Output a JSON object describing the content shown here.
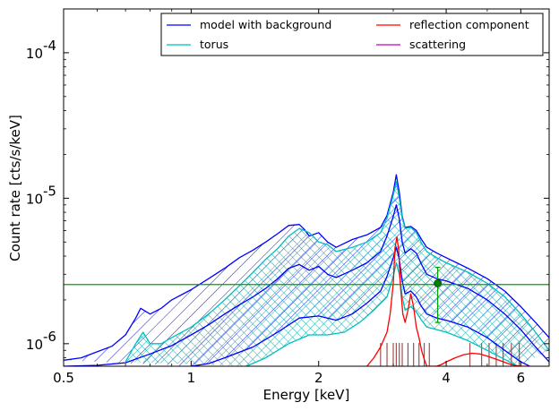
{
  "chart_data": {
    "type": "line",
    "xlabel": "Energy [keV]",
    "ylabel": "Count rate [cts/s/keV]",
    "x_scale": "log",
    "y_scale": "log",
    "xlim": [
      0.5,
      7.0
    ],
    "ylim": [
      7e-07,
      0.0002
    ],
    "x_ticks": [
      {
        "value": 0.5,
        "label": "0.5"
      },
      {
        "value": 1,
        "label": "1"
      },
      {
        "value": 2,
        "label": "2"
      },
      {
        "value": 4,
        "label": "4"
      },
      {
        "value": 6,
        "label": "6"
      }
    ],
    "y_ticks": [
      {
        "value": 1e-06,
        "label": "10",
        "exp": "-6"
      },
      {
        "value": 1e-05,
        "label": "10",
        "exp": "-5"
      },
      {
        "value": 0.0001,
        "label": "10",
        "exp": "-4"
      }
    ],
    "legend": {
      "placement": "top-right",
      "entries": [
        {
          "name": "model with background",
          "color": "#0000ff"
        },
        {
          "name": "reflection component",
          "color": "#ff0000"
        },
        {
          "name": "torus",
          "color": "#00bfbf"
        },
        {
          "name": "scattering",
          "color": "#bf00bf"
        }
      ]
    },
    "series": [
      {
        "name": "model with background",
        "color": "#0000ff",
        "role": "upper",
        "x": [
          0.5,
          0.55,
          0.6,
          0.65,
          0.7,
          0.74,
          0.76,
          0.8,
          0.85,
          0.9,
          1.0,
          1.1,
          1.2,
          1.3,
          1.4,
          1.5,
          1.6,
          1.7,
          1.8,
          1.85,
          1.9,
          2.0,
          2.1,
          2.2,
          2.4,
          2.6,
          2.8,
          2.9,
          3.0,
          3.05,
          3.1,
          3.15,
          3.2,
          3.3,
          3.4,
          3.5,
          3.6,
          3.8,
          4.0,
          4.5,
          5.0,
          5.5,
          6.0,
          6.5,
          7.0
        ],
        "y": [
          7.7e-07,
          8e-07,
          8.8e-07,
          9.6e-07,
          1.15e-06,
          1.5e-06,
          1.75e-06,
          1.6e-06,
          1.75e-06,
          2e-06,
          2.35e-06,
          2.8e-06,
          3.3e-06,
          3.9e-06,
          4.4e-06,
          5e-06,
          5.7e-06,
          6.5e-06,
          6.6e-06,
          6.1e-06,
          5.5e-06,
          5.8e-06,
          5e-06,
          4.6e-06,
          5.2e-06,
          5.6e-06,
          6.3e-06,
          7.6e-06,
          1.1e-05,
          1.45e-05,
          1.1e-05,
          7.5e-06,
          6.3e-06,
          6.4e-06,
          6e-06,
          5.2e-06,
          4.6e-06,
          4.2e-06,
          3.9e-06,
          3.3e-06,
          2.8e-06,
          2.3e-06,
          1.8e-06,
          1.4e-06,
          1.1e-06
        ]
      },
      {
        "name": "model with background",
        "color": "#0000ff",
        "role": "middle",
        "x": [
          0.5,
          0.6,
          0.7,
          0.8,
          0.9,
          1.0,
          1.1,
          1.2,
          1.3,
          1.4,
          1.5,
          1.6,
          1.7,
          1.8,
          1.9,
          2.0,
          2.1,
          2.2,
          2.4,
          2.6,
          2.8,
          2.9,
          3.0,
          3.05,
          3.1,
          3.15,
          3.2,
          3.3,
          3.4,
          3.5,
          3.6,
          3.8,
          4.0,
          4.5,
          5.0,
          5.5,
          6.0,
          6.5,
          7.0
        ],
        "y": [
          7e-07,
          7.1e-07,
          7.4e-07,
          8.5e-07,
          9.7e-07,
          1.15e-06,
          1.35e-06,
          1.6e-06,
          1.85e-06,
          2.1e-06,
          2.4e-06,
          2.8e-06,
          3.3e-06,
          3.5e-06,
          3.2e-06,
          3.4e-06,
          3e-06,
          2.85e-06,
          3.2e-06,
          3.6e-06,
          4.3e-06,
          5.5e-06,
          7.5e-06,
          9e-06,
          7.2e-06,
          5e-06,
          4.2e-06,
          4.5e-06,
          4.2e-06,
          3.5e-06,
          3e-06,
          2.8e-06,
          2.7e-06,
          2.4e-06,
          2e-06,
          1.6e-06,
          1.25e-06,
          9.5e-07,
          7.5e-07
        ]
      },
      {
        "name": "model with background",
        "color": "#0000ff",
        "role": "lower",
        "x": [
          1.0,
          1.1,
          1.2,
          1.4,
          1.6,
          1.8,
          2.0,
          2.2,
          2.4,
          2.6,
          2.8,
          2.9,
          3.0,
          3.05,
          3.1,
          3.15,
          3.2,
          3.3,
          3.4,
          3.5,
          3.6,
          3.8,
          4.0,
          4.5,
          5.0,
          5.5,
          6.0,
          6.3
        ],
        "y": [
          7e-07,
          7.3e-07,
          8e-07,
          9.5e-07,
          1.2e-06,
          1.5e-06,
          1.55e-06,
          1.45e-06,
          1.6e-06,
          1.9e-06,
          2.3e-06,
          2.9e-06,
          3.9e-06,
          4.6e-06,
          3.8e-06,
          2.7e-06,
          2.2e-06,
          2.3e-06,
          2.1e-06,
          1.8e-06,
          1.6e-06,
          1.5e-06,
          1.45e-06,
          1.3e-06,
          1.1e-06,
          9e-07,
          7.5e-07,
          7e-07
        ]
      },
      {
        "name": "torus",
        "color": "#00bfbf",
        "role": "upper",
        "x": [
          0.7,
          0.74,
          0.77,
          0.8,
          0.85,
          0.9,
          1.0,
          1.1,
          1.2,
          1.3,
          1.4,
          1.5,
          1.6,
          1.7,
          1.8,
          1.9,
          2.0,
          2.1,
          2.2,
          2.4,
          2.6,
          2.8,
          2.9,
          3.0,
          3.05,
          3.1,
          3.15,
          3.2,
          3.3,
          3.4,
          3.5,
          3.6,
          3.8,
          4.0,
          4.5,
          5.0,
          5.5,
          6.0,
          6.5,
          7.0
        ],
        "y": [
          7.5e-07,
          1e-06,
          1.2e-06,
          1e-06,
          1e-06,
          1.1e-06,
          1.3e-06,
          1.6e-06,
          2e-06,
          2.5e-06,
          3.1e-06,
          3.8e-06,
          4.5e-06,
          5.5e-06,
          6.2e-06,
          5.8e-06,
          5e-06,
          4.8e-06,
          4.3e-06,
          4.6e-06,
          5e-06,
          5.8e-06,
          7.3e-06,
          1.05e-05,
          1.3e-05,
          1e-05,
          7.3e-06,
          6.2e-06,
          6.3e-06,
          5.8e-06,
          4.9e-06,
          4.3e-06,
          3.9e-06,
          3.6e-06,
          3.1e-06,
          2.6e-06,
          2.1e-06,
          1.6e-06,
          1.2e-06,
          9e-07
        ]
      },
      {
        "name": "torus",
        "color": "#00bfbf",
        "role": "lower",
        "x": [
          1.35,
          1.5,
          1.7,
          1.9,
          2.1,
          2.3,
          2.5,
          2.7,
          2.9,
          3.0,
          3.05,
          3.1,
          3.15,
          3.2,
          3.3,
          3.4,
          3.5,
          3.6,
          3.8,
          4.0,
          4.5,
          5.0,
          5.5,
          5.9
        ],
        "y": [
          7e-07,
          8e-07,
          1e-06,
          1.15e-06,
          1.15e-06,
          1.2e-06,
          1.4e-06,
          1.7e-06,
          2.1e-06,
          2.9e-06,
          3.6e-06,
          3e-06,
          2.1e-06,
          1.7e-06,
          1.8e-06,
          1.65e-06,
          1.45e-06,
          1.3e-06,
          1.25e-06,
          1.2e-06,
          1.05e-06,
          9e-07,
          7.8e-07,
          7e-07
        ]
      },
      {
        "name": "reflection component",
        "color": "#ff0000",
        "x": [
          2.6,
          2.7,
          2.8,
          2.9,
          2.95,
          3.0,
          3.03,
          3.06,
          3.09,
          3.12,
          3.16,
          3.2,
          3.25,
          3.3,
          3.35,
          3.4,
          3.45,
          3.5,
          3.55,
          3.6,
          3.7,
          3.8,
          3.9,
          4.0,
          4.2,
          4.4,
          4.6,
          4.8,
          5.0,
          5.2,
          5.4,
          5.6,
          5.8,
          6.0,
          6.3
        ],
        "y": [
          7e-07,
          8e-07,
          9.5e-07,
          1.2e-06,
          1.6e-06,
          2.6e-06,
          4.6e-06,
          5.4e-06,
          4.4e-06,
          2.5e-06,
          1.6e-06,
          1.4e-06,
          1.7e-06,
          2.2e-06,
          1.8e-06,
          1.3e-06,
          1.1e-06,
          9e-07,
          7.8e-07,
          7e-07,
          7e-07,
          7e-07,
          7.2e-07,
          7.5e-07,
          8e-07,
          8.4e-07,
          8.6e-07,
          8.5e-07,
          8.2e-07,
          7.9e-07,
          7.6e-07,
          7.3e-07,
          7.1e-07,
          7e-07,
          7e-07
        ]
      },
      {
        "name": "",
        "color": "#00a000",
        "type": "hline",
        "y_value": 2.55e-06
      },
      {
        "name": "",
        "color": "#00a000",
        "type": "errorbar",
        "x": 3.82,
        "y": 2.6e-06,
        "y_low": 1.4e-06,
        "y_high": 3.35e-06
      }
    ],
    "vlines": {
      "color": "#a05050",
      "x": [
        2.8,
        2.9,
        3.0,
        3.05,
        3.1,
        3.15,
        3.25,
        3.35,
        3.45,
        3.55,
        3.65,
        4.55,
        4.85,
        5.05,
        5.25,
        5.45,
        5.7,
        5.95
      ]
    }
  }
}
